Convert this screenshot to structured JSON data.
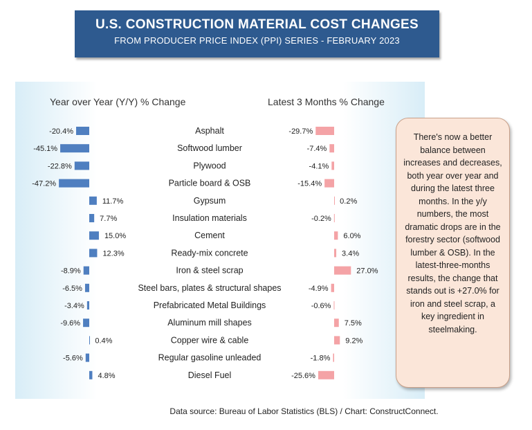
{
  "header": {
    "title": "U.S. CONSTRUCTION MATERIAL COST CHANGES",
    "subtitle": "FROM PRODUCER PRICE INDEX (PPI) SERIES - FEBRUARY 2023"
  },
  "panels": {
    "left_heading": "Year over Year (Y/Y) % Change",
    "right_heading": "Latest 3 Months % Change"
  },
  "note": "There's now a better balance between increases and decreases, both year over year and during the latest three months. In the y/y numbers, the most dramatic drops are in the forestry sector (softwood lumber & OSB). In the latest-three-months results, the change that stands out is +27.0% for iron and steel scrap, a key ingredient in steelmaking.",
  "source": "Data source: Bureau of Labor Statistics (BLS) / Chart: ConstructConnect.",
  "colors": {
    "yoy_bar": "#4f7fc0",
    "three_month_bar": "#f4a3a6",
    "title_bg": "#2e5a8f"
  },
  "chart_data": {
    "type": "bar",
    "categories": [
      "Asphalt",
      "Softwood lumber",
      "Plywood",
      "Particle board & OSB",
      "Gypsum",
      "Insulation materials",
      "Cement",
      "Ready-mix concrete",
      "Iron & steel scrap",
      "Steel bars, plates & structural shapes",
      "Prefabricated Metal Buildings",
      "Aluminum mill shapes",
      "Copper wire & cable",
      "Regular gasoline unleaded",
      "Diesel Fuel"
    ],
    "series": [
      {
        "name": "Year over Year (Y/Y) % Change",
        "values": [
          -20.4,
          -45.1,
          -22.8,
          -47.2,
          11.7,
          7.7,
          15.0,
          12.3,
          -8.9,
          -6.5,
          -3.4,
          -9.6,
          0.4,
          -5.6,
          4.8
        ],
        "labels": [
          "-20.4%",
          "-45.1%",
          "-22.8%",
          "-47.2%",
          "11.7%",
          "7.7%",
          "15.0%",
          "12.3%",
          "-8.9%",
          "-6.5%",
          "-3.4%",
          "-9.6%",
          "0.4%",
          "-5.6%",
          "4.8%"
        ]
      },
      {
        "name": "Latest 3 Months % Change",
        "values": [
          -29.7,
          -7.4,
          -4.1,
          -15.4,
          0.2,
          -0.2,
          6.0,
          3.4,
          27.0,
          -4.9,
          -0.6,
          7.5,
          9.2,
          -1.8,
          -25.6
        ],
        "labels": [
          "-29.7%",
          "-7.4%",
          "-4.1%",
          "-15.4%",
          "0.2%",
          "-0.2%",
          "6.0%",
          "3.4%",
          "27.0%",
          "-4.9%",
          "-0.6%",
          "7.5%",
          "9.2%",
          "-1.8%",
          "-25.6%"
        ]
      }
    ],
    "grid": false,
    "legend": "none"
  }
}
